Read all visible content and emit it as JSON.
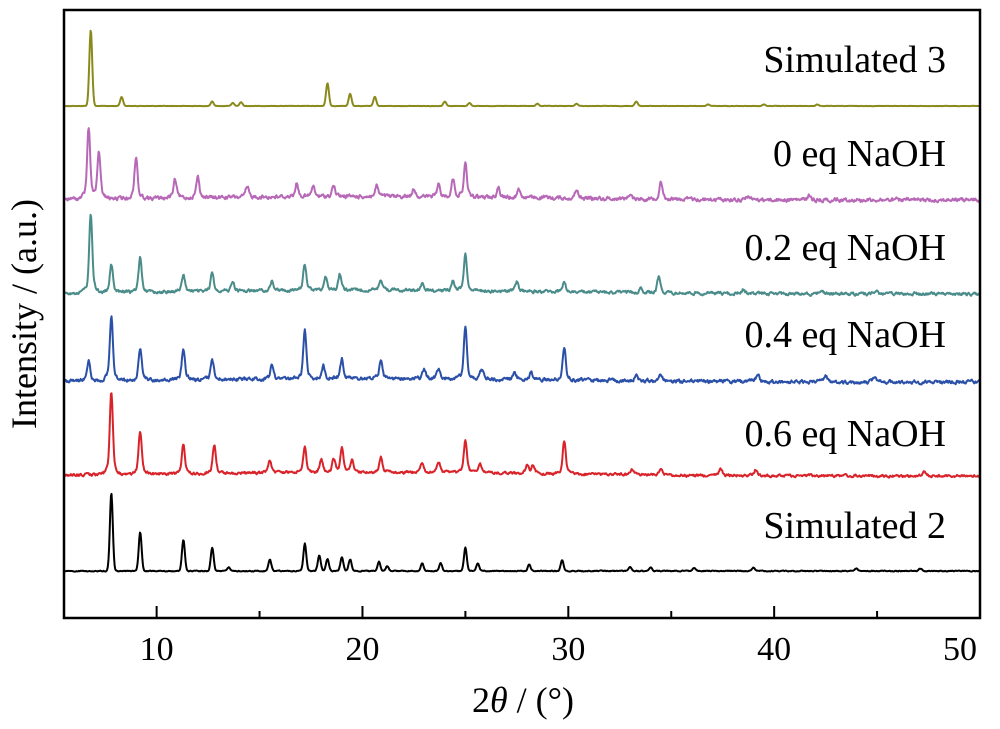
{
  "chart_data": {
    "type": "line",
    "title": "",
    "xlabel_prefix": "2",
    "xlabel_symbol": "θ",
    "xlabel_suffix": " / (°)",
    "ylabel": "Intensity / (a.u.)",
    "xlim": [
      5.5,
      50
    ],
    "x_ticks": [
      10,
      20,
      30,
      40,
      50
    ],
    "grid": false,
    "y_tick_labels": false,
    "series": [
      {
        "name": "Simulated 3",
        "color": "#8a8a1c",
        "peaks": [
          [
            6.8,
            1.0
          ],
          [
            8.3,
            0.12
          ],
          [
            12.7,
            0.06
          ],
          [
            13.7,
            0.04
          ],
          [
            14.1,
            0.05
          ],
          [
            18.3,
            0.3
          ],
          [
            19.4,
            0.16
          ],
          [
            20.6,
            0.12
          ],
          [
            24.0,
            0.06
          ],
          [
            25.2,
            0.04
          ],
          [
            28.5,
            0.03
          ],
          [
            30.4,
            0.03
          ],
          [
            33.3,
            0.06
          ],
          [
            36.8,
            0.02
          ],
          [
            39.5,
            0.02
          ],
          [
            42.1,
            0.02
          ]
        ]
      },
      {
        "name": "0 eq NaOH",
        "color": "#b768b7",
        "peaks": [
          [
            6.7,
            0.85
          ],
          [
            7.2,
            0.55
          ],
          [
            9.0,
            0.5
          ],
          [
            10.9,
            0.22
          ],
          [
            12.0,
            0.25
          ],
          [
            14.4,
            0.12
          ],
          [
            16.8,
            0.16
          ],
          [
            17.6,
            0.12
          ],
          [
            18.6,
            0.13
          ],
          [
            20.7,
            0.13
          ],
          [
            22.5,
            0.1
          ],
          [
            23.7,
            0.15
          ],
          [
            24.4,
            0.22
          ],
          [
            25.0,
            0.4
          ],
          [
            26.6,
            0.12
          ],
          [
            27.6,
            0.1
          ],
          [
            30.4,
            0.1
          ],
          [
            33.0,
            0.06
          ],
          [
            34.5,
            0.22
          ],
          [
            38.7,
            0.05
          ],
          [
            41.7,
            0.05
          ]
        ]
      },
      {
        "name": "0.2 eq NaOH",
        "color": "#4a8c8a",
        "peaks": [
          [
            6.8,
            0.85
          ],
          [
            7.8,
            0.3
          ],
          [
            9.2,
            0.38
          ],
          [
            11.3,
            0.18
          ],
          [
            12.7,
            0.2
          ],
          [
            13.7,
            0.1
          ],
          [
            15.6,
            0.1
          ],
          [
            17.2,
            0.28
          ],
          [
            18.2,
            0.15
          ],
          [
            18.9,
            0.18
          ],
          [
            20.9,
            0.12
          ],
          [
            22.9,
            0.06
          ],
          [
            24.4,
            0.1
          ],
          [
            25.0,
            0.4
          ],
          [
            27.5,
            0.1
          ],
          [
            29.8,
            0.1
          ],
          [
            33.5,
            0.05
          ],
          [
            34.4,
            0.18
          ],
          [
            38.5,
            0.05
          ],
          [
            42.3,
            0.05
          ],
          [
            45.0,
            0.03
          ]
        ]
      },
      {
        "name": "0.4 eq NaOH",
        "color": "#2b50a8",
        "peaks": [
          [
            6.7,
            0.25
          ],
          [
            7.8,
            0.78
          ],
          [
            9.2,
            0.4
          ],
          [
            11.3,
            0.38
          ],
          [
            12.7,
            0.24
          ],
          [
            15.6,
            0.16
          ],
          [
            17.2,
            0.58
          ],
          [
            18.1,
            0.16
          ],
          [
            19.0,
            0.24
          ],
          [
            20.9,
            0.22
          ],
          [
            23.0,
            0.12
          ],
          [
            23.7,
            0.12
          ],
          [
            25.0,
            0.62
          ],
          [
            25.8,
            0.12
          ],
          [
            27.4,
            0.08
          ],
          [
            28.2,
            0.09
          ],
          [
            29.8,
            0.4
          ],
          [
            33.3,
            0.07
          ],
          [
            34.5,
            0.08
          ],
          [
            39.2,
            0.09
          ],
          [
            42.5,
            0.07
          ],
          [
            44.9,
            0.08
          ]
        ]
      },
      {
        "name": "0.6 eq NaOH",
        "color": "#d9232a",
        "peaks": [
          [
            7.8,
            0.95
          ],
          [
            9.2,
            0.5
          ],
          [
            11.3,
            0.35
          ],
          [
            12.8,
            0.33
          ],
          [
            15.5,
            0.15
          ],
          [
            17.2,
            0.3
          ],
          [
            18.0,
            0.15
          ],
          [
            18.6,
            0.15
          ],
          [
            19.0,
            0.3
          ],
          [
            19.5,
            0.15
          ],
          [
            20.9,
            0.18
          ],
          [
            22.9,
            0.1
          ],
          [
            23.7,
            0.12
          ],
          [
            25.0,
            0.38
          ],
          [
            25.7,
            0.12
          ],
          [
            28.0,
            0.1
          ],
          [
            28.3,
            0.1
          ],
          [
            29.8,
            0.38
          ],
          [
            33.1,
            0.07
          ],
          [
            34.5,
            0.06
          ],
          [
            37.4,
            0.07
          ],
          [
            39.1,
            0.07
          ],
          [
            47.3,
            0.05
          ]
        ]
      },
      {
        "name": "Simulated 2",
        "color": "#000000",
        "peaks": [
          [
            7.8,
            1.0
          ],
          [
            9.2,
            0.5
          ],
          [
            11.3,
            0.4
          ],
          [
            12.7,
            0.3
          ],
          [
            13.5,
            0.05
          ],
          [
            15.5,
            0.15
          ],
          [
            17.2,
            0.35
          ],
          [
            17.9,
            0.2
          ],
          [
            18.3,
            0.15
          ],
          [
            19.0,
            0.18
          ],
          [
            19.4,
            0.15
          ],
          [
            20.8,
            0.12
          ],
          [
            21.2,
            0.06
          ],
          [
            22.9,
            0.1
          ],
          [
            23.8,
            0.1
          ],
          [
            25.0,
            0.3
          ],
          [
            25.6,
            0.1
          ],
          [
            28.1,
            0.08
          ],
          [
            29.7,
            0.14
          ],
          [
            33.0,
            0.05
          ],
          [
            34.0,
            0.05
          ],
          [
            36.1,
            0.04
          ],
          [
            39.0,
            0.04
          ],
          [
            44.0,
            0.03
          ],
          [
            47.1,
            0.03
          ]
        ]
      }
    ]
  }
}
